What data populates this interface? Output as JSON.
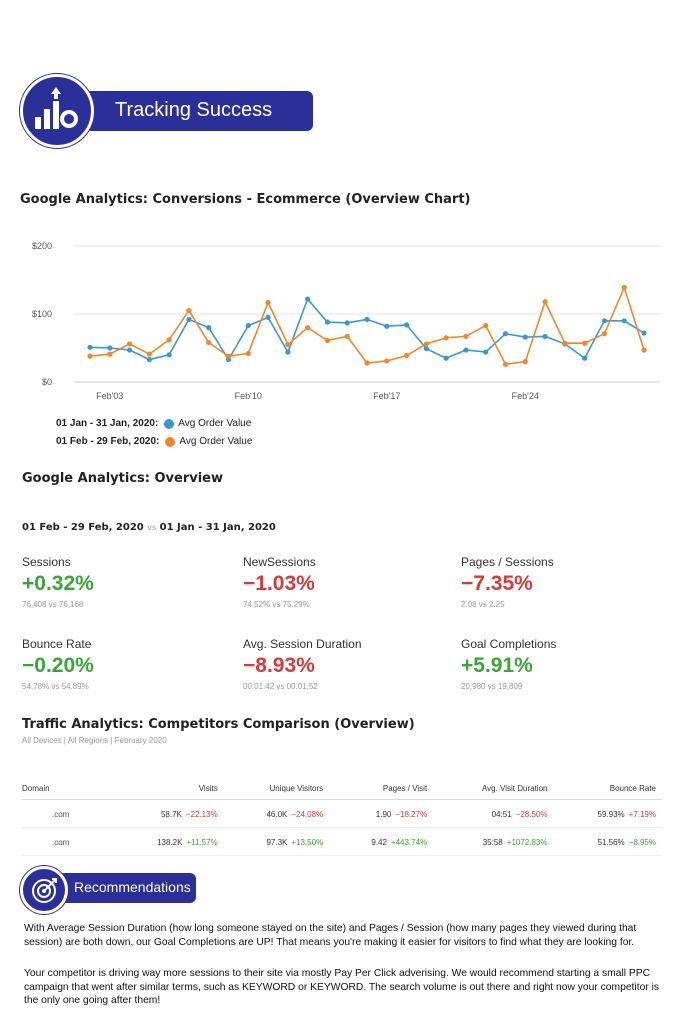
{
  "header": {
    "title": "Tracking Success",
    "icon": "chart-growth-icon"
  },
  "conversions": {
    "heading": "Google Analytics: Conversions - Ecommerce (Overview Chart)"
  },
  "chart_data": {
    "type": "line",
    "title": "",
    "xlabel": "",
    "ylabel": "",
    "ylim": [
      0,
      200
    ],
    "y_ticks": [
      "$0",
      "$100",
      "$200"
    ],
    "x_ticks": [
      "Feb'03",
      "Feb'10",
      "Feb'17",
      "Feb'24"
    ],
    "x": [
      1,
      2,
      3,
      4,
      5,
      6,
      7,
      8,
      9,
      10,
      11,
      12,
      13,
      14,
      15,
      16,
      17,
      18,
      19,
      20,
      21,
      22,
      23,
      24,
      25,
      26,
      27,
      28,
      29
    ],
    "grid": true,
    "legend_position": "bottom-left",
    "series": [
      {
        "name": "Avg Order Value",
        "period": "01 Jan - 31 Jan, 2020:",
        "color": "#3a97d6",
        "values": [
          51,
          50,
          47,
          33,
          40,
          92,
          80,
          33,
          83,
          95,
          44,
          122,
          88,
          87,
          92,
          82,
          84,
          49,
          35,
          47,
          44,
          71,
          66,
          67,
          56,
          35,
          90,
          90,
          72
        ]
      },
      {
        "name": "Avg Order Value",
        "period": "01 Feb - 29 Feb, 2020:",
        "color": "#f0882a",
        "values": [
          38,
          41,
          56,
          41,
          62,
          105,
          58,
          38,
          42,
          117,
          55,
          80,
          61,
          67,
          28,
          31,
          39,
          56,
          65,
          67,
          83,
          26,
          30,
          118,
          57,
          57,
          71,
          139,
          47
        ]
      }
    ]
  },
  "overview": {
    "heading": "Google Analytics: Overview",
    "range_a": "01 Feb - 29 Feb, 2020",
    "vs": "vs",
    "range_b": "01 Jan - 31 Jan, 2020",
    "metrics": [
      {
        "label": "Sessions",
        "value": "+0.32%",
        "compare": "76,408 vs 76,168",
        "trend": "pos"
      },
      {
        "label": "NewSessions",
        "value": "−1.03%",
        "compare": "74.52% vs 75.29%",
        "trend": "neg"
      },
      {
        "label": "Pages / Sessions",
        "value": "−7.35%",
        "compare": "2.08 vs 2.25",
        "trend": "neg"
      },
      {
        "label": "Bounce Rate",
        "value": "−0.20%",
        "compare": "54.78% vs 54.89%",
        "trend": "pos"
      },
      {
        "label": "Avg. Session Duration",
        "value": "−8.93%",
        "compare": "00:01:42 vs 00:01:52",
        "trend": "neg"
      },
      {
        "label": "Goal Completions",
        "value": "+5.91%",
        "compare": "20,980 vs 19,809",
        "trend": "pos"
      }
    ]
  },
  "traffic": {
    "heading": "Traffic Analytics: Competitors Comparison (Overview)",
    "subheading": "All Devices | All Regions | February 2020",
    "columns": [
      "Domain",
      "Visits",
      "Unique Visitors",
      "Pages / Visit",
      "Avg. Visit Duration",
      "Bounce Rate"
    ],
    "rows": [
      {
        "domain": ".com",
        "cells": [
          {
            "v": "58.7K",
            "c": "−22.13%",
            "t": "neg"
          },
          {
            "v": "46.0K",
            "c": "−24.08%",
            "t": "neg"
          },
          {
            "v": "1.90",
            "c": "−18.27%",
            "t": "neg"
          },
          {
            "v": "04:51",
            "c": "−28.50%",
            "t": "neg"
          },
          {
            "v": "59.93%",
            "c": "+7.19%",
            "t": "neg"
          }
        ]
      },
      {
        "domain": ".com",
        "cells": [
          {
            "v": "138.2K",
            "c": "+11.57%",
            "t": "pos"
          },
          {
            "v": "97.3K",
            "c": "+13.50%",
            "t": "pos"
          },
          {
            "v": "9.42",
            "c": "+443.74%",
            "t": "pos"
          },
          {
            "v": "35:58",
            "c": "+1072.83%",
            "t": "pos"
          },
          {
            "v": "51.56%",
            "c": "−8.95%",
            "t": "pos"
          }
        ]
      }
    ]
  },
  "recommendations": {
    "title": "Recommendations",
    "icon": "target-icon",
    "paragraphs": [
      "With Average Session Duration (how long someone stayed on the site) and Pages / Session (how many pages they viewed during that session) are both down, our Goal Completions are UP! That means you're making it easier for visitors to find what they are looking for.",
      "Your competitor is driving way more sessions to their site via mostly Pay Per Click adverising. We would recommend starting a small PPC campaign that went after similar terms, such as KEYWORD or KEYWORD. The search volume is out there and right now your competitor is the only one going after them!"
    ]
  },
  "colors": {
    "brand": "#2a2f9a",
    "positive": "#3aa635",
    "negative": "#d83a3a",
    "series_a": "#3a97d6",
    "series_b": "#f0882a"
  }
}
